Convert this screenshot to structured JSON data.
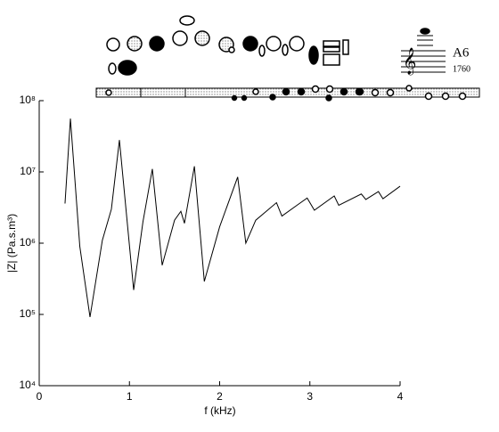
{
  "chart_data": {
    "type": "line",
    "title": null,
    "xlabel": "f (kHz)",
    "ylabel": "|Z| (Pa.s.m³)",
    "annotations": [
      "A6",
      "1760"
    ],
    "x": [
      0.286,
      0.346,
      0.45,
      0.563,
      0.7,
      0.8,
      0.889,
      1.047,
      1.15,
      1.254,
      1.363,
      1.5,
      1.57,
      1.61,
      1.72,
      1.83,
      2.0,
      2.2,
      2.29,
      2.4,
      2.63,
      2.69,
      2.87,
      2.97,
      3.05,
      3.27,
      3.32,
      3.57,
      3.62,
      3.76,
      3.81,
      4.0
    ],
    "series": [
      {
        "name": null,
        "color": "#000000",
        "values": [
          3600000,
          56000000,
          900000,
          92000,
          1100000,
          3000000,
          28000000,
          220000,
          2000000,
          11000000,
          490000,
          2100000,
          2800000,
          1900000,
          12000000,
          290000,
          1700000,
          8500000,
          1000000,
          2100000,
          3700000,
          2400000,
          3500000,
          4300000,
          2900000,
          4600000,
          3400000,
          4900000,
          4100000,
          5300000,
          4200000,
          6300000
        ]
      }
    ],
    "xlim": [
      0,
      4
    ],
    "xticks": [
      0,
      1,
      2,
      3,
      4
    ],
    "ylim": [
      10000,
      100000000
    ],
    "log_y": true,
    "yticks": [
      {
        "value": 10000,
        "label": "10⁴"
      },
      {
        "value": 100000,
        "label": "10⁵"
      },
      {
        "value": 1000000,
        "label": "10⁶"
      },
      {
        "value": 10000000,
        "label": "10⁷"
      },
      {
        "value": 100000000,
        "label": "10⁸"
      }
    ]
  }
}
